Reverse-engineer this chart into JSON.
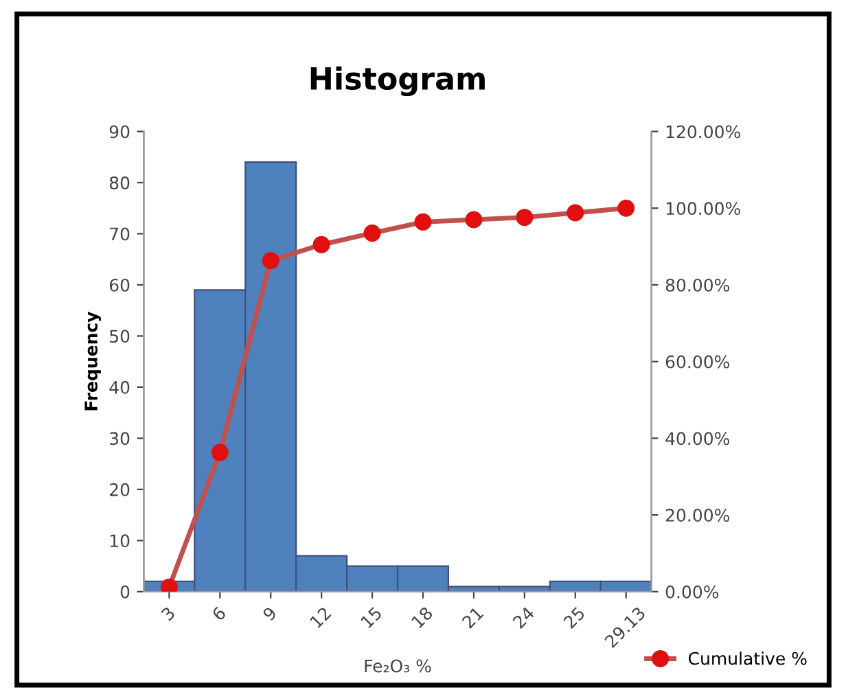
{
  "chart_data": {
    "type": "bar",
    "title": "Histogram",
    "xlabel": "Fe₂O₃ %",
    "ylabel": "Frequency",
    "categories": [
      "3",
      "6",
      "9",
      "12",
      "15",
      "18",
      "21",
      "24",
      "25",
      "29.13"
    ],
    "series": [
      {
        "color": "#4f81bd",
        "values": [
          2,
          59,
          84,
          7,
          5,
          5,
          1,
          1,
          2,
          2
        ]
      },
      {
        "type": "line",
        "axis": "y2",
        "name": "Cumulative %",
        "color": "#c0504d",
        "values": [
          1.2,
          36.3,
          86.3,
          90.5,
          93.5,
          96.4,
          97.0,
          97.6,
          98.8,
          100.0
        ]
      }
    ],
    "ylim": [
      0,
      90
    ],
    "yticks": [
      0,
      10,
      20,
      30,
      40,
      50,
      60,
      70,
      80,
      90
    ],
    "y2lim": [
      0,
      120
    ],
    "y2ticks": [
      {
        "value": 0,
        "label": "0.00%"
      },
      {
        "value": 20,
        "label": "20.00%"
      },
      {
        "value": 40,
        "label": "40.00%"
      },
      {
        "value": 60,
        "label": "60.00%"
      },
      {
        "value": 80,
        "label": "80.00%"
      },
      {
        "value": 100,
        "label": "100.00%"
      },
      {
        "value": 120,
        "label": "120.00%"
      }
    ],
    "marker": "circle",
    "line_style": "solid",
    "legend": "bottom right",
    "grid": false
  }
}
